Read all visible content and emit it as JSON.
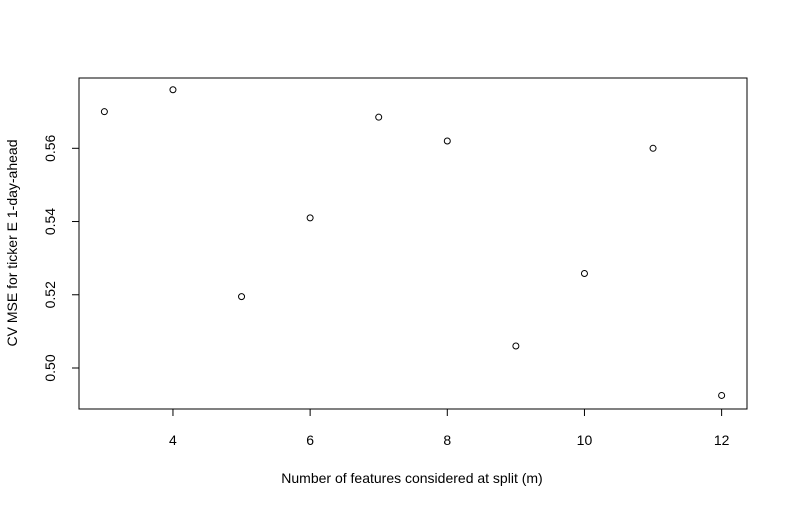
{
  "chart_data": {
    "type": "scatter",
    "title": "",
    "xlabel": "Number of features considered at split (m)",
    "ylabel": "CV MSE for ticker E 1-day-ahead",
    "xlim": [
      2.63,
      12.37
    ],
    "ylim": [
      0.4888,
      0.5792
    ],
    "xticks": [
      4,
      6,
      8,
      10,
      12
    ],
    "yticks": [
      0.5,
      0.52,
      0.54,
      0.56
    ],
    "xtick_labels": [
      "4",
      "6",
      "8",
      "10",
      "12"
    ],
    "ytick_labels": [
      "0.50",
      "0.52",
      "0.54",
      "0.56"
    ],
    "grid": false,
    "points": [
      {
        "x": 3,
        "y": 0.57
      },
      {
        "x": 4,
        "y": 0.576
      },
      {
        "x": 5,
        "y": 0.5195
      },
      {
        "x": 6,
        "y": 0.541
      },
      {
        "x": 7,
        "y": 0.5685
      },
      {
        "x": 8,
        "y": 0.562
      },
      {
        "x": 9,
        "y": 0.506
      },
      {
        "x": 10,
        "y": 0.5258
      },
      {
        "x": 11,
        "y": 0.56
      },
      {
        "x": 12,
        "y": 0.4925
      }
    ]
  }
}
